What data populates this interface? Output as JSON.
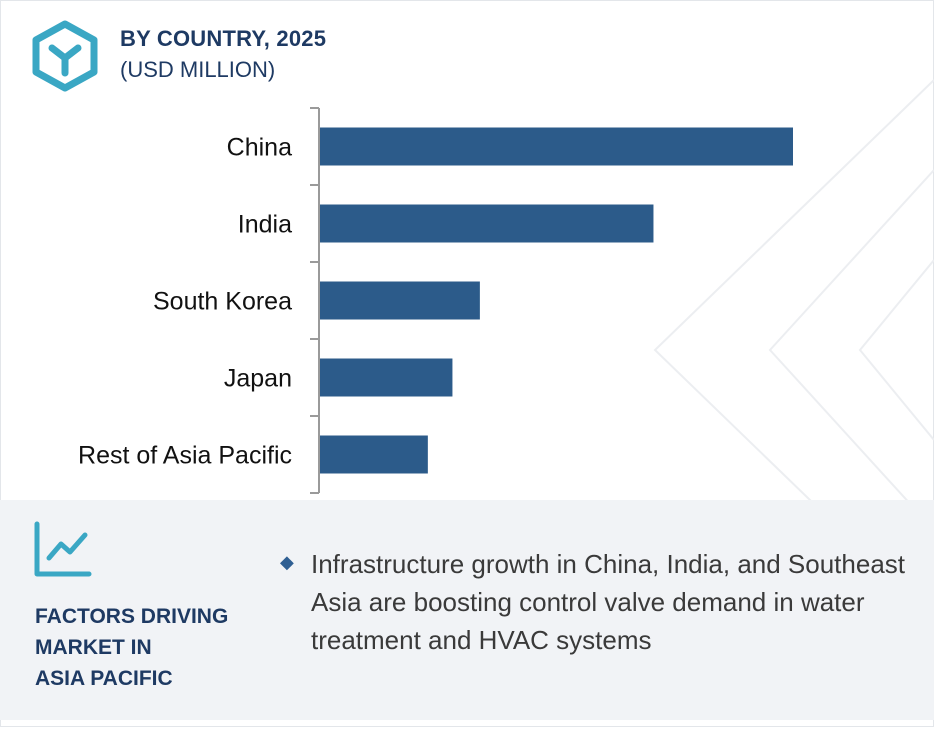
{
  "header": {
    "title": "BY COUNTRY, 2025",
    "subtitle": "(USD MILLION)",
    "logo_icon": "hexagon-y-logo-icon"
  },
  "colors": {
    "bar": "#2c5b8a",
    "heading": "#1e3a63",
    "logo": "#3aa7c4",
    "panel": "#f1f3f6"
  },
  "chart_data": {
    "type": "bar",
    "orientation": "horizontal",
    "title": "BY COUNTRY, 2025",
    "subtitle": "(USD MILLION)",
    "categories": [
      "China",
      "India",
      "South Korea",
      "Japan",
      "Rest of Asia Pacific"
    ],
    "values": [
      100,
      70.5,
      33.8,
      28,
      22.8
    ],
    "xlim": [
      0,
      100
    ],
    "x_axis_visible": false,
    "grid": false,
    "legend": "none"
  },
  "factors": {
    "icon": "line-chart-trend-icon",
    "heading_lines": [
      "FACTORS DRIVING",
      "MARKET IN",
      "ASIA PACIFIC"
    ],
    "bullet_icon": "diamond-bullet-icon",
    "bullets": [
      "Infrastructure growth in China, India, and Southeast Asia are boosting control valve demand in water treatment and HVAC systems"
    ]
  }
}
